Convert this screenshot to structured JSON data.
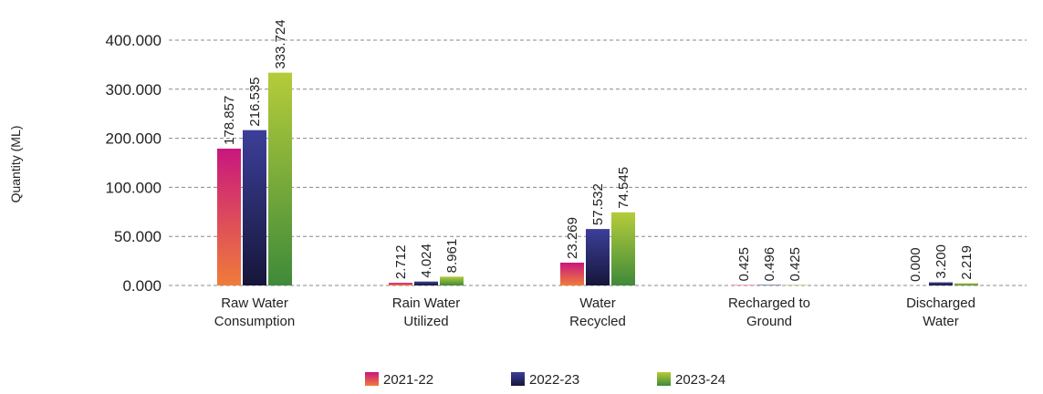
{
  "chart_data": {
    "type": "bar",
    "y_label": "Quantity (ML)",
    "categories": [
      "Raw Water\nConsumption",
      "Rain Water\nUtilized",
      "Water\nRecycled",
      "Recharged to\nGround",
      "Discharged\nWater"
    ],
    "series": [
      {
        "name": "2021-22",
        "color": "#c8177e",
        "gradient": [
          "#c8177e",
          "#f07c3a"
        ],
        "values": [
          178.857,
          2.712,
          23.269,
          0.425,
          0
        ],
        "value_labels": [
          "178.857",
          "2.712",
          "23.269",
          "0.425",
          "0.000"
        ]
      },
      {
        "name": "2022-23",
        "color": "#3c3f99",
        "gradient": [
          "#3c3f99",
          "#16163a"
        ],
        "values": [
          216.535,
          4.024,
          57.532,
          0.496,
          3.2
        ],
        "value_labels": [
          "216.535",
          "4.024",
          "57.532",
          "0.496",
          "3.200"
        ]
      },
      {
        "name": "2023-24",
        "color": "#b5cc3a",
        "gradient": [
          "#b5cc3a",
          "#3f8a3a"
        ],
        "values": [
          333.724,
          8.961,
          74.545,
          0.425,
          2.219
        ],
        "value_labels": [
          "333.724",
          "8.961",
          "74.545",
          "0.425",
          "2.219"
        ]
      }
    ],
    "ylim": [
      0,
      400
    ],
    "yticks": [
      {
        "value": 0,
        "label": "0.000"
      },
      {
        "value": 50,
        "label": "50.000"
      },
      {
        "value": 100,
        "label": "100.000"
      },
      {
        "value": 200,
        "label": "200.000"
      },
      {
        "value": 300,
        "label": "300.000"
      },
      {
        "value": 400,
        "label": "400.000"
      }
    ],
    "grid": true,
    "legend": "bottom"
  }
}
